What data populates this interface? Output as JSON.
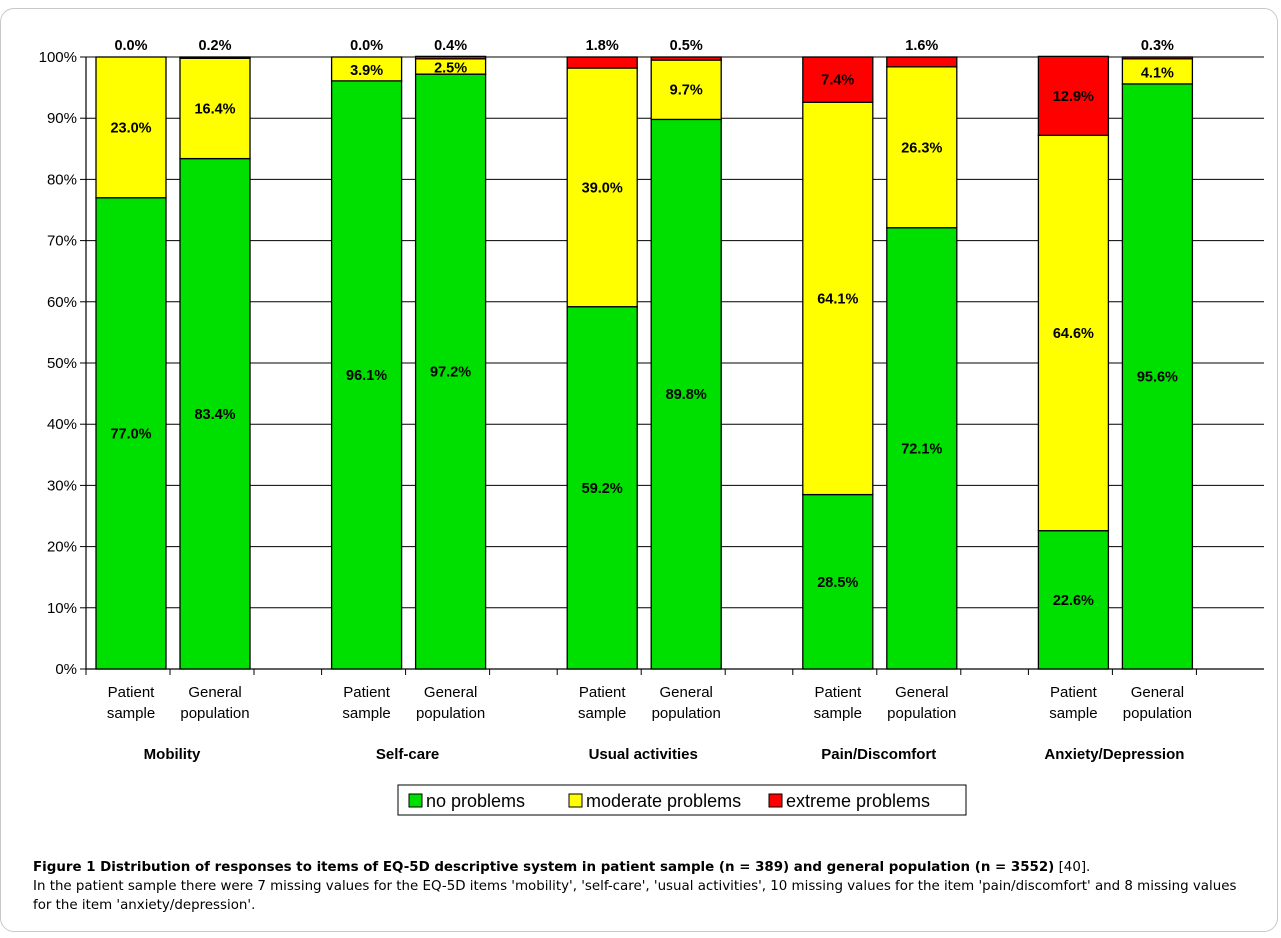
{
  "caption": {
    "title": "Figure 1 Distribution of responses to items of EQ-5D descriptive system in patient sample (n = 389) and general population (n = 3552)",
    "ref": " [40].",
    "body": "In the patient sample there were 7 missing values for the EQ-5D items 'mobility', 'self-care', 'usual activities', 10 missing values for the item 'pain/discomfort' and 8 missing values for the item 'anxiety/depression'."
  },
  "chart_data": {
    "type": "bar",
    "stacked": true,
    "title": "",
    "xlabel": "",
    "ylabel": "",
    "ylim": [
      0,
      100
    ],
    "y_ticks": [
      "0%",
      "10%",
      "20%",
      "30%",
      "40%",
      "50%",
      "60%",
      "70%",
      "80%",
      "90%",
      "100%"
    ],
    "grid": true,
    "legend_position": "bottom",
    "bar_labels": [
      [
        "Patient",
        "sample"
      ],
      [
        "General",
        "population"
      ]
    ],
    "groups": [
      "Mobility",
      "Self-care",
      "Usual activities",
      "Pain/Discomfort",
      "Anxiety/Depression"
    ],
    "series": [
      {
        "name": "no problems",
        "color": "#00e000",
        "values": [
          77.0,
          83.4,
          96.1,
          97.2,
          59.2,
          89.8,
          28.5,
          72.1,
          22.6,
          95.6
        ],
        "labels": [
          "77.0%",
          "83.4%",
          "96.1%",
          "97.2%",
          "59.2%",
          "89.8%",
          "28.5%",
          "72.1%",
          "22.6%",
          "95.6%"
        ]
      },
      {
        "name": "moderate problems",
        "color": "#ffff00",
        "values": [
          23.0,
          16.4,
          3.9,
          2.5,
          39.0,
          9.7,
          64.1,
          26.3,
          64.6,
          4.1
        ],
        "labels": [
          "23.0%",
          "16.4%",
          "3.9%",
          "2.5%",
          "39.0%",
          "9.7%",
          "64.1%",
          "26.3%",
          "64.6%",
          "4.1%"
        ]
      },
      {
        "name": "extreme problems",
        "color": "#ff0000",
        "values": [
          0.0,
          0.2,
          0.0,
          0.4,
          1.8,
          0.5,
          7.4,
          1.6,
          12.9,
          0.3
        ],
        "labels": [
          "0.0%",
          "0.2%",
          "0.0%",
          "0.4%",
          "1.8%",
          "0.5%",
          "7.4%",
          "1.6%",
          "12.9%",
          "0.3%"
        ]
      }
    ]
  }
}
